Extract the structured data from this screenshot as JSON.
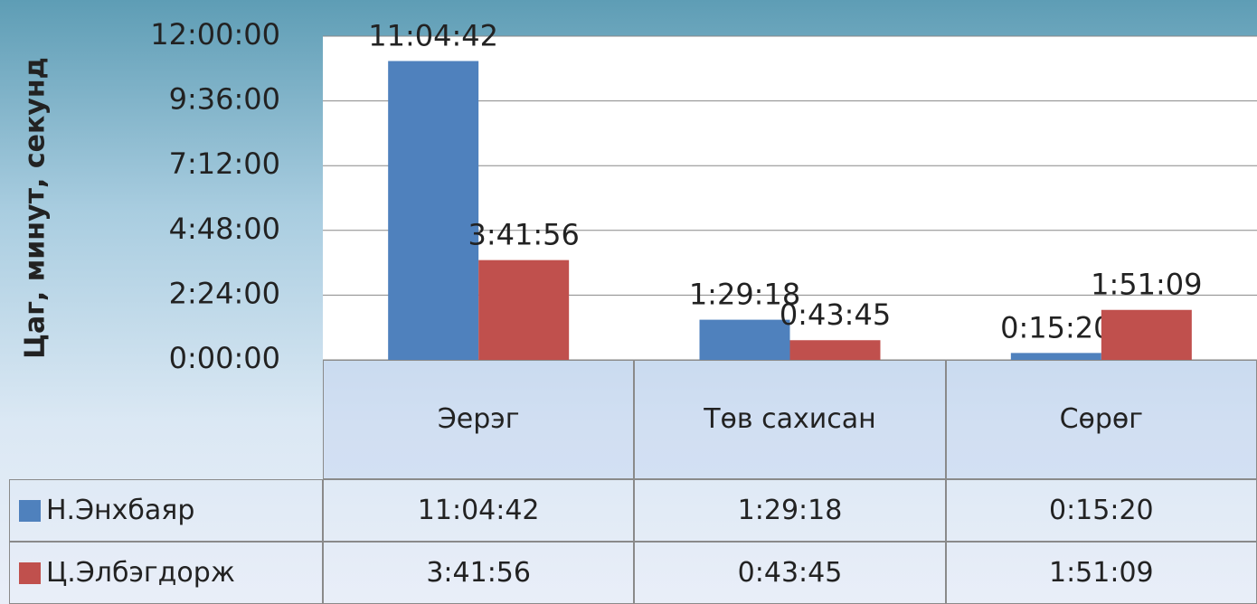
{
  "chart_data": {
    "type": "bar",
    "y_label": "Цаг, минут, секунд",
    "categories": [
      "Эерэг",
      "Төв сахисан",
      "Сөрөг"
    ],
    "series": [
      {
        "name": "Н.Энхбаяр",
        "color": "#4f81bd",
        "values": [
          39882,
          5358,
          920
        ],
        "value_labels": [
          "11:04:42",
          "1:29:18",
          "0:15:20"
        ]
      },
      {
        "name": "Ц.Элбэгдорж",
        "color": "#c0504d",
        "values": [
          13316,
          2625,
          6669
        ],
        "value_labels": [
          "3:41:56",
          "0:43:45",
          "1:51:09"
        ]
      }
    ],
    "ylim": [
      0,
      43200
    ],
    "yticks": [
      {
        "value": 0,
        "label": "0:00:00"
      },
      {
        "value": 8640,
        "label": "2:24:00"
      },
      {
        "value": 17280,
        "label": "4:48:00"
      },
      {
        "value": 25920,
        "label": "7:12:00"
      },
      {
        "value": 34560,
        "label": "9:36:00"
      },
      {
        "value": 43200,
        "label": "12:00:00"
      }
    ],
    "grid": true
  }
}
